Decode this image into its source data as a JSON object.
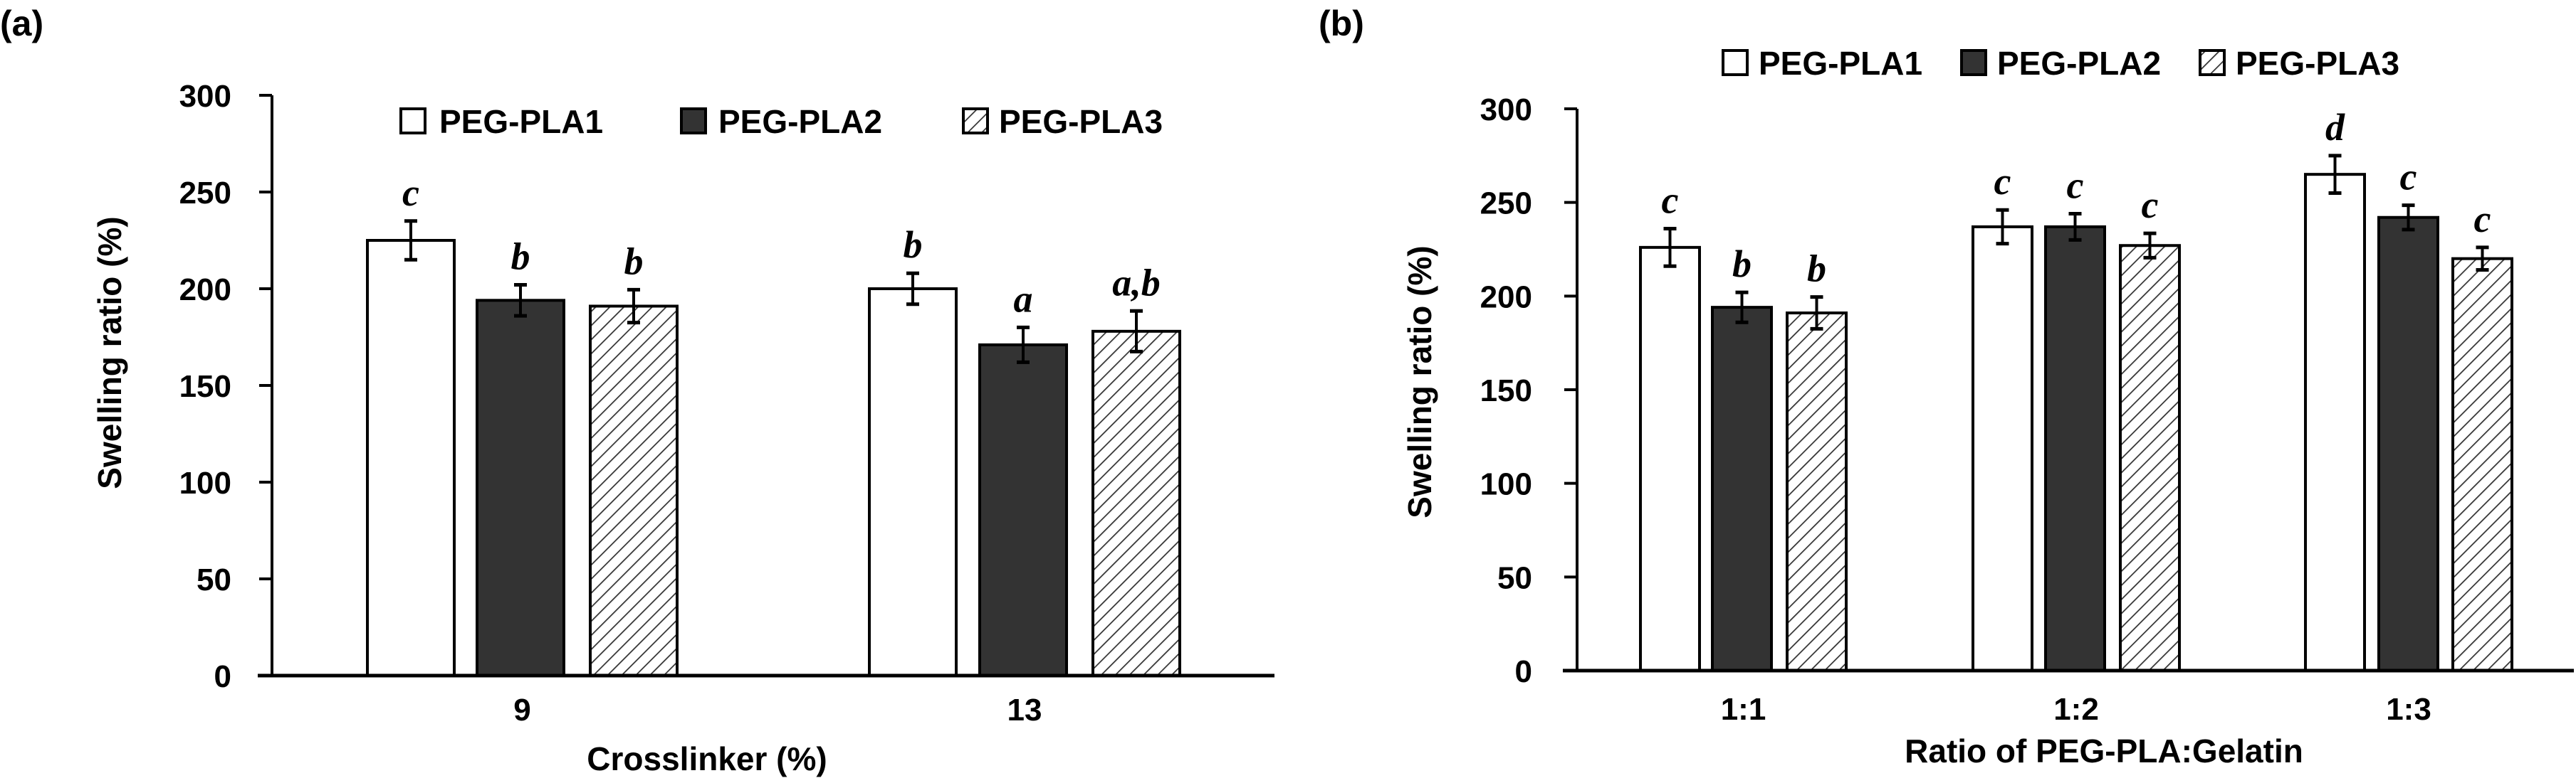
{
  "chart_data": [
    {
      "panel_label": "(a)",
      "type": "bar",
      "title": "",
      "xlabel": "Crosslinker (%)",
      "ylabel": "Swelling ratio (%)",
      "ylim": [
        0,
        300
      ],
      "yticks": [
        "0",
        "50",
        "100",
        "150",
        "200",
        "250",
        "300"
      ],
      "categories": [
        "9",
        "13"
      ],
      "grid": false,
      "legend_position": "top-center",
      "series": [
        {
          "name": "PEG-PLA1",
          "style": "white",
          "values": [
            225,
            200
          ],
          "errors": [
            10,
            8
          ],
          "letters": [
            "c",
            "b"
          ]
        },
        {
          "name": "PEG-PLA2",
          "style": "dark",
          "values": [
            194,
            171
          ],
          "errors": [
            8,
            9
          ],
          "letters": [
            "b",
            "a"
          ]
        },
        {
          "name": "PEG-PLA3",
          "style": "hatched",
          "values": [
            191,
            178
          ],
          "errors": [
            8.5,
            10.5
          ],
          "letters": [
            "b",
            "a,b"
          ]
        }
      ]
    },
    {
      "panel_label": "(b)",
      "type": "bar",
      "title": "",
      "xlabel": "Ratio of PEG-PLA:Gelatin",
      "ylabel": "Swelling ratio (%)",
      "ylim": [
        0,
        300
      ],
      "yticks": [
        "0",
        "50",
        "100",
        "150",
        "200",
        "250",
        "300"
      ],
      "categories": [
        "1:1",
        "1:2",
        "1:3"
      ],
      "grid": false,
      "legend_position": "top-center",
      "series": [
        {
          "name": "PEG-PLA1",
          "style": "white",
          "values": [
            226,
            237,
            265
          ],
          "errors": [
            10,
            9,
            10
          ],
          "letters": [
            "c",
            "c",
            "d"
          ]
        },
        {
          "name": "PEG-PLA2",
          "style": "dark",
          "values": [
            194,
            237,
            242
          ],
          "errors": [
            8,
            7,
            6.5
          ],
          "letters": [
            "b",
            "c",
            "c"
          ]
        },
        {
          "name": "PEG-PLA3",
          "style": "hatched",
          "values": [
            191,
            227,
            220
          ],
          "errors": [
            8.5,
            6.5,
            6
          ],
          "letters": [
            "b",
            "c",
            "c"
          ]
        }
      ]
    }
  ],
  "colors": {
    "white_bar": "#ffffff",
    "dark_bar": "#333333",
    "hatch_line": "#333333",
    "axis": "#000000",
    "text": "#000000"
  }
}
